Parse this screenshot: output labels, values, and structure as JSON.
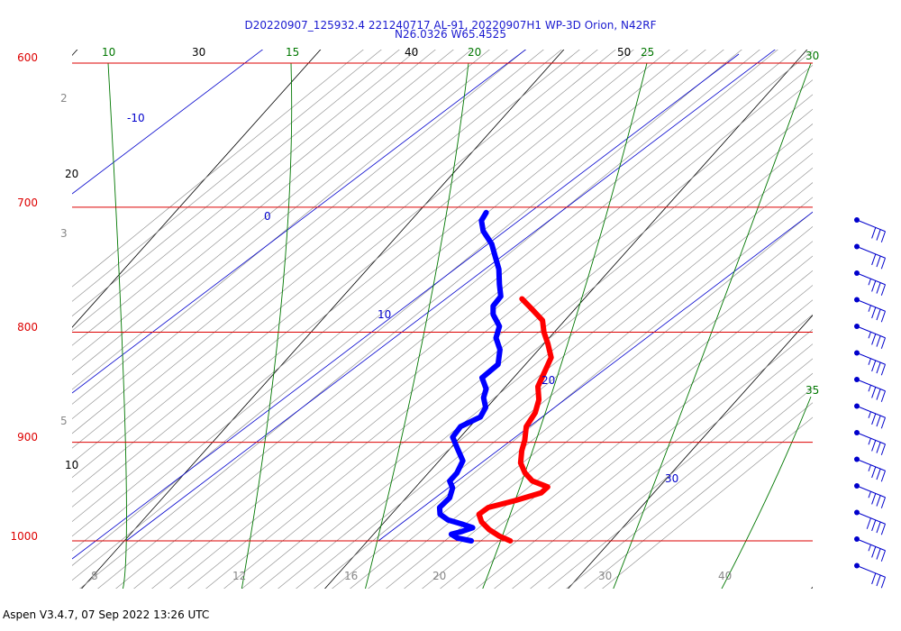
{
  "header": {
    "line1": "D20220907_125932.4 221240717 AL-91, 20220907H1 WP-3D Orion, N42RF",
    "line2": "N26.0326 W65.4525"
  },
  "footer": "Aspen V3.4.7, 07 Sep 2022  13:26 UTC",
  "colors": {
    "isobar": "#dd0000",
    "isotherm": "#000000",
    "dry_adiabat": "#888888",
    "moist_adiabat": "#007700",
    "mixing_ratio": "#0000cc",
    "temperature": "#ff0000",
    "dewpoint": "#0000ff",
    "wind_barb": "#0000cc"
  },
  "chart_data": {
    "type": "line",
    "chart_kind": "skew-T log-P thermodynamic diagram",
    "y_scale": "log",
    "pressure_labels": [
      "600",
      "700",
      "800",
      "900",
      "1000"
    ],
    "pressure_levels": [
      600,
      700,
      800,
      900,
      1000
    ],
    "isotherm_labels": [
      "20",
      "30",
      "40",
      "50",
      "10"
    ],
    "moist_adiabat_labels": [
      "10",
      "15",
      "20",
      "25",
      "30",
      "35"
    ],
    "mixing_ratio_labels": [
      "-10",
      "0",
      "10",
      "20",
      "30"
    ],
    "dry_adiabat_left_labels": [
      "2",
      "3",
      "5"
    ],
    "bottom_labels": [
      "8",
      "12",
      "16",
      "20",
      "30",
      "40"
    ],
    "series": [
      {
        "name": "Temperature",
        "points": [
          [
            1000,
            23.4
          ],
          [
            995,
            22.9
          ],
          [
            988,
            22.4
          ],
          [
            980,
            22.0
          ],
          [
            972,
            21.8
          ],
          [
            965,
            22.1
          ],
          [
            958,
            23.1
          ],
          [
            950,
            24.1
          ],
          [
            944,
            24.3
          ],
          [
            938,
            23.6
          ],
          [
            930,
            23.2
          ],
          [
            920,
            22.9
          ],
          [
            908,
            22.8
          ],
          [
            898,
            22.8
          ],
          [
            885,
            22.7
          ],
          [
            872,
            22.9
          ],
          [
            860,
            22.9
          ],
          [
            848,
            22.7
          ],
          [
            835,
            22.8
          ],
          [
            822,
            22.9
          ],
          [
            810,
            22.6
          ],
          [
            800,
            22.3
          ],
          [
            790,
            22.1
          ],
          [
            780,
            21.5
          ],
          [
            772,
            21.0
          ]
        ]
      },
      {
        "name": "Dewpoint",
        "points": [
          [
            1000,
            21.8
          ],
          [
            997,
            21.2
          ],
          [
            993,
            20.9
          ],
          [
            990,
            21.3
          ],
          [
            986,
            21.7
          ],
          [
            982,
            21.2
          ],
          [
            978,
            20.6
          ],
          [
            972,
            20.2
          ],
          [
            965,
            20.1
          ],
          [
            955,
            20.4
          ],
          [
            945,
            20.4
          ],
          [
            938,
            20.2
          ],
          [
            930,
            20.4
          ],
          [
            918,
            20.5
          ],
          [
            905,
            20.1
          ],
          [
            895,
            19.8
          ],
          [
            885,
            20.0
          ],
          [
            876,
            20.7
          ],
          [
            867,
            20.8
          ],
          [
            858,
            20.6
          ],
          [
            850,
            20.6
          ],
          [
            840,
            20.3
          ],
          [
            828,
            20.8
          ],
          [
            815,
            20.7
          ],
          [
            805,
            20.4
          ],
          [
            795,
            20.4
          ],
          [
            785,
            20.0
          ],
          [
            778,
            19.9
          ],
          [
            770,
            20.1
          ],
          [
            760,
            19.9
          ],
          [
            748,
            19.7
          ],
          [
            738,
            19.4
          ],
          [
            728,
            19.1
          ],
          [
            718,
            18.6
          ],
          [
            710,
            18.4
          ],
          [
            704,
            18.5
          ]
        ]
      }
    ],
    "wind_barbs": [
      {
        "pressure": 700,
        "direction_deg": 115,
        "speed_kt": 30
      },
      {
        "pressure": 720,
        "direction_deg": 110,
        "speed_kt": 30
      },
      {
        "pressure": 740,
        "direction_deg": 110,
        "speed_kt": 35
      },
      {
        "pressure": 760,
        "direction_deg": 110,
        "speed_kt": 35
      },
      {
        "pressure": 780,
        "direction_deg": 110,
        "speed_kt": 35
      },
      {
        "pressure": 800,
        "direction_deg": 105,
        "speed_kt": 35
      },
      {
        "pressure": 820,
        "direction_deg": 105,
        "speed_kt": 35
      },
      {
        "pressure": 840,
        "direction_deg": 100,
        "speed_kt": 35
      },
      {
        "pressure": 860,
        "direction_deg": 100,
        "speed_kt": 35
      },
      {
        "pressure": 880,
        "direction_deg": 95,
        "speed_kt": 35
      },
      {
        "pressure": 900,
        "direction_deg": 95,
        "speed_kt": 35
      },
      {
        "pressure": 920,
        "direction_deg": 90,
        "speed_kt": 40
      },
      {
        "pressure": 945,
        "direction_deg": 85,
        "speed_kt": 35
      },
      {
        "pressure": 975,
        "direction_deg": 80,
        "speed_kt": 30
      }
    ]
  }
}
